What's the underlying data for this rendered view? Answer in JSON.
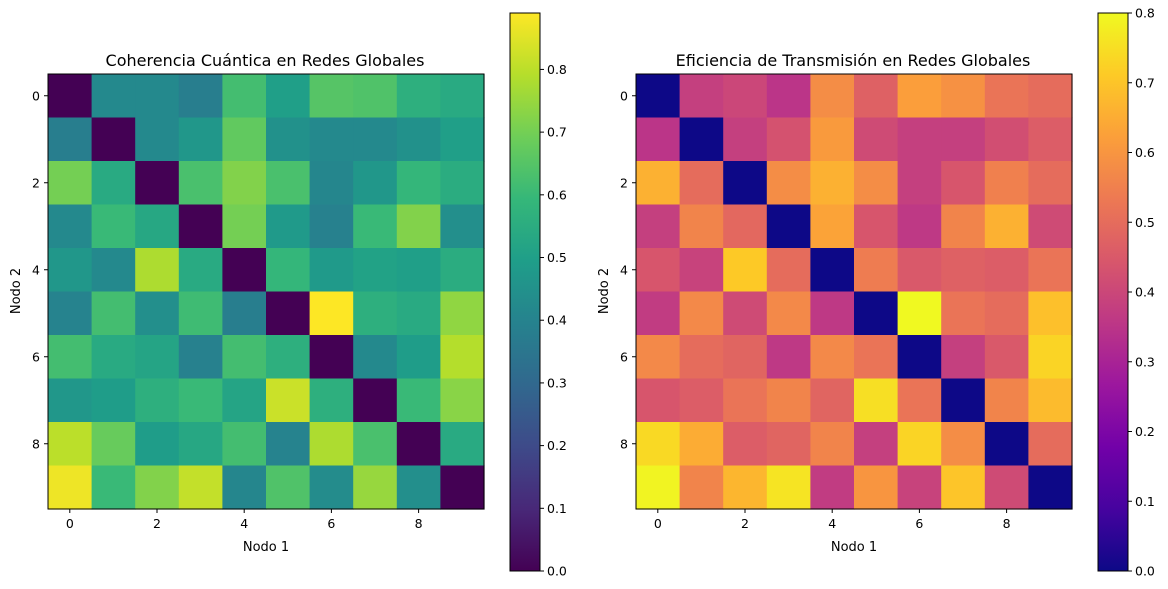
{
  "chart_data": [
    {
      "type": "heatmap",
      "title": "Coherencia Cuántica en Redes Globales",
      "xlabel": "Nodo 1",
      "ylabel": "Nodo 2",
      "colormap": "viridis",
      "x_ticks": [
        "0",
        "2",
        "4",
        "6",
        "8"
      ],
      "y_ticks": [
        "0",
        "2",
        "4",
        "6",
        "8"
      ],
      "colorbar": {
        "range": [
          0,
          0.89
        ],
        "ticks": [
          "0.0",
          "0.1",
          "0.2",
          "0.3",
          "0.4",
          "0.5",
          "0.6",
          "0.7",
          "0.8"
        ]
      },
      "matrix": [
        [
          0.0,
          0.42,
          0.42,
          0.38,
          0.62,
          0.5,
          0.65,
          0.64,
          0.56,
          0.54
        ],
        [
          0.38,
          0.0,
          0.42,
          0.47,
          0.67,
          0.45,
          0.42,
          0.42,
          0.45,
          0.5
        ],
        [
          0.7,
          0.54,
          0.0,
          0.63,
          0.72,
          0.63,
          0.41,
          0.47,
          0.59,
          0.55
        ],
        [
          0.42,
          0.6,
          0.53,
          0.0,
          0.7,
          0.48,
          0.39,
          0.6,
          0.72,
          0.44
        ],
        [
          0.47,
          0.42,
          0.78,
          0.54,
          0.0,
          0.59,
          0.48,
          0.51,
          0.5,
          0.55
        ],
        [
          0.4,
          0.62,
          0.44,
          0.61,
          0.38,
          0.0,
          0.89,
          0.56,
          0.54,
          0.74
        ],
        [
          0.62,
          0.54,
          0.52,
          0.39,
          0.62,
          0.56,
          0.0,
          0.42,
          0.49,
          0.79
        ],
        [
          0.47,
          0.49,
          0.56,
          0.6,
          0.52,
          0.82,
          0.56,
          0.0,
          0.6,
          0.73
        ],
        [
          0.8,
          0.68,
          0.49,
          0.53,
          0.62,
          0.4,
          0.78,
          0.63,
          0.0,
          0.54
        ],
        [
          0.87,
          0.6,
          0.72,
          0.81,
          0.41,
          0.64,
          0.43,
          0.75,
          0.44,
          0.0
        ]
      ]
    },
    {
      "type": "heatmap",
      "title": "Eficiencia de Transmisión en Redes Globales",
      "xlabel": "Nodo 1",
      "ylabel": "Nodo 2",
      "colormap": "plasma",
      "x_ticks": [
        "0",
        "2",
        "4",
        "6",
        "8"
      ],
      "y_ticks": [
        "0",
        "2",
        "4",
        "6",
        "8"
      ],
      "colorbar": {
        "range": [
          0,
          0.8
        ],
        "ticks": [
          "0.0",
          "0.1",
          "0.2",
          "0.3",
          "0.4",
          "0.5",
          "0.6",
          "0.7",
          "0.8"
        ]
      },
      "matrix": [
        [
          0.0,
          0.38,
          0.4,
          0.35,
          0.58,
          0.47,
          0.62,
          0.59,
          0.52,
          0.5
        ],
        [
          0.35,
          0.0,
          0.38,
          0.43,
          0.61,
          0.41,
          0.38,
          0.38,
          0.42,
          0.46
        ],
        [
          0.66,
          0.5,
          0.0,
          0.58,
          0.66,
          0.58,
          0.38,
          0.44,
          0.55,
          0.5
        ],
        [
          0.38,
          0.56,
          0.49,
          0.0,
          0.63,
          0.44,
          0.36,
          0.56,
          0.66,
          0.41
        ],
        [
          0.44,
          0.39,
          0.71,
          0.5,
          0.0,
          0.54,
          0.45,
          0.47,
          0.46,
          0.52
        ],
        [
          0.37,
          0.57,
          0.41,
          0.57,
          0.36,
          0.0,
          0.8,
          0.52,
          0.5,
          0.69
        ],
        [
          0.57,
          0.5,
          0.48,
          0.36,
          0.57,
          0.52,
          0.0,
          0.38,
          0.45,
          0.73
        ],
        [
          0.44,
          0.46,
          0.52,
          0.56,
          0.48,
          0.75,
          0.52,
          0.0,
          0.56,
          0.68
        ],
        [
          0.74,
          0.65,
          0.46,
          0.48,
          0.56,
          0.38,
          0.73,
          0.58,
          0.0,
          0.5
        ],
        [
          0.79,
          0.56,
          0.67,
          0.76,
          0.37,
          0.6,
          0.39,
          0.7,
          0.41,
          0.0
        ]
      ]
    }
  ]
}
